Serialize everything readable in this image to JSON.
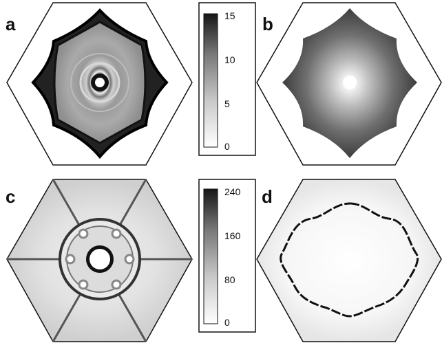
{
  "panels": [
    {
      "label": "a"
    },
    {
      "label": "b"
    },
    {
      "label": "c"
    },
    {
      "label": "d"
    }
  ],
  "colorbars": [
    {
      "ticks": [
        "15",
        "10",
        "5",
        "0"
      ],
      "max": 15,
      "min": 0
    },
    {
      "ticks": [
        "240",
        "160",
        "80",
        "0"
      ],
      "max": 240,
      "min": 0
    }
  ],
  "colors": {
    "low": "#ffffff",
    "high": "#111111",
    "outline": "#111111"
  }
}
